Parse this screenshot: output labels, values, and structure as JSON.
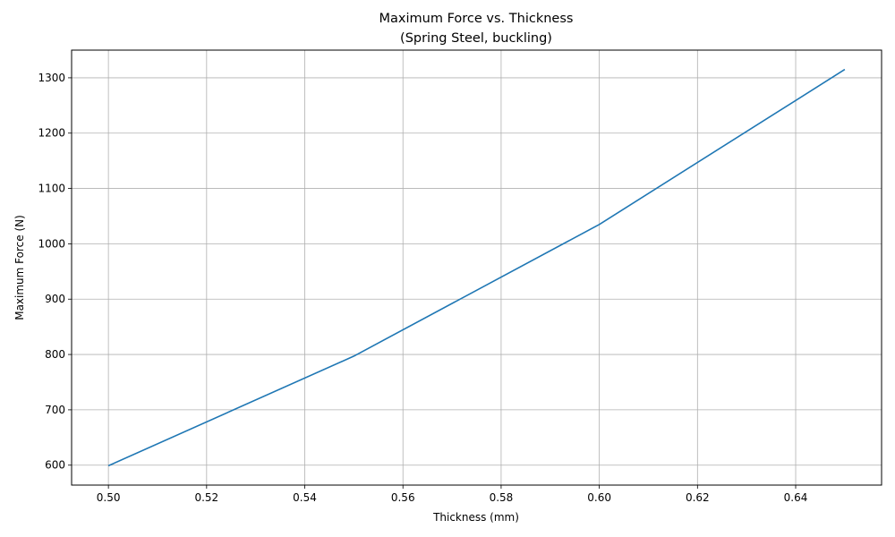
{
  "chart_data": {
    "type": "line",
    "title": "Maximum Force vs. Thickness",
    "subtitle": "(Spring Steel, buckling)",
    "xlabel": "Thickness (mm)",
    "ylabel": "Maximum Force (N)",
    "xlim": [
      0.4925,
      0.6575
    ],
    "ylim": [
      564,
      1350
    ],
    "xticks": [
      0.5,
      0.52,
      0.54,
      0.56,
      0.58,
      0.6,
      0.62,
      0.64
    ],
    "xtick_labels": [
      "0.50",
      "0.52",
      "0.54",
      "0.56",
      "0.58",
      "0.60",
      "0.62",
      "0.64"
    ],
    "yticks": [
      600,
      700,
      800,
      900,
      1000,
      1100,
      1200,
      1300
    ],
    "ytick_labels": [
      "600",
      "700",
      "800",
      "900",
      "1000",
      "1100",
      "1200",
      "1300"
    ],
    "grid": true,
    "series": [
      {
        "color": "#1f77b4",
        "x": [
          0.5,
          0.55,
          0.6,
          0.65
        ],
        "y": [
          599,
          797,
          1035,
          1315
        ]
      }
    ]
  }
}
